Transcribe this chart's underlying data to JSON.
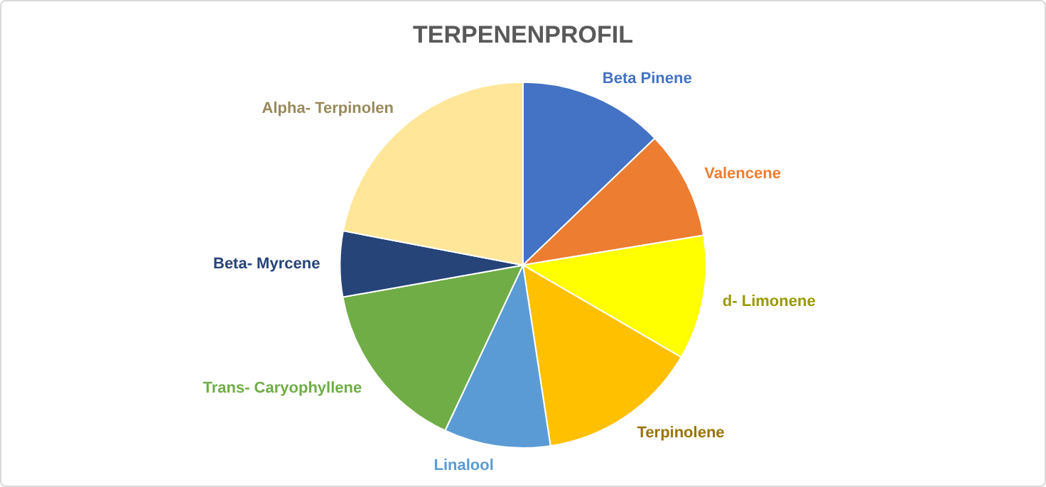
{
  "chart_data": {
    "type": "pie",
    "title": "TERPENENPROFIL",
    "categories": [
      "Beta Pinene",
      "Valencene",
      "d- Limonene",
      "Terpinolene",
      "Linalool",
      "Trans- Caryophyllene",
      "Beta- Myrcene",
      "Alpha- Terpinolen"
    ],
    "values": [
      12.8,
      9.6,
      11,
      14.2,
      9.4,
      15.2,
      5.8,
      22
    ],
    "colors": [
      "#4472c4",
      "#ed7d31",
      "#ffff00",
      "#ffc000",
      "#5b9bd5",
      "#70ad47",
      "#264478",
      "#ffe699"
    ],
    "legend": false
  }
}
